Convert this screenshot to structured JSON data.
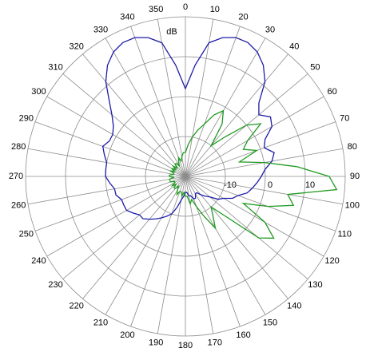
{
  "chart_data": {
    "type": "polar",
    "r_label": "dB",
    "theta_direction": "clockwise",
    "theta_zero": "top",
    "rlim": [
      -20,
      20
    ],
    "rticks": [
      -10,
      0,
      10
    ],
    "thetaticks": [
      0,
      10,
      20,
      30,
      40,
      50,
      60,
      70,
      80,
      90,
      100,
      110,
      120,
      130,
      140,
      150,
      160,
      170,
      180,
      190,
      200,
      210,
      220,
      230,
      240,
      250,
      260,
      270,
      280,
      290,
      300,
      310,
      320,
      330,
      340,
      350
    ],
    "theta": [
      0,
      5,
      10,
      15,
      20,
      25,
      30,
      35,
      40,
      45,
      50,
      55,
      60,
      65,
      70,
      75,
      80,
      85,
      90,
      95,
      100,
      105,
      110,
      115,
      120,
      125,
      130,
      135,
      140,
      145,
      150,
      155,
      160,
      165,
      170,
      175,
      180,
      185,
      190,
      195,
      200,
      205,
      210,
      215,
      220,
      225,
      230,
      235,
      240,
      245,
      250,
      255,
      260,
      265,
      270,
      275,
      280,
      285,
      290,
      295,
      300,
      305,
      310,
      315,
      320,
      325,
      330,
      335,
      340,
      345,
      350,
      355
    ],
    "series": [
      {
        "color": "#1c1ca8",
        "values": [
          2,
          8,
          14,
          16,
          17,
          17,
          16,
          14,
          11,
          6,
          4,
          6,
          5,
          2,
          1,
          3,
          2,
          0,
          -1,
          -2,
          -3,
          -4,
          -6,
          -7,
          -9,
          -10,
          -12,
          -13,
          -14,
          -15,
          -15,
          -14,
          -14,
          -15,
          -15,
          -16,
          -16,
          -15,
          -14,
          -12,
          -10,
          -9,
          -8,
          -7,
          -6,
          -5,
          -5,
          -4,
          -3,
          -3,
          -3,
          -2,
          -2,
          -1,
          0,
          0,
          0,
          1,
          2,
          1,
          1,
          2,
          4,
          7,
          11,
          14,
          16,
          17,
          17,
          16,
          14,
          8
        ]
      },
      {
        "color": "#1f9a1f",
        "values": [
          -14,
          -12,
          -10,
          -8,
          -6,
          -3,
          -1,
          -4,
          -10,
          -6,
          0,
          3,
          -2,
          -4,
          -1,
          -6,
          0,
          8,
          16,
          18,
          6,
          8,
          2,
          -4,
          3,
          7,
          4,
          -6,
          -10,
          -8,
          -5,
          -9,
          -12,
          -14,
          -13,
          -15,
          -15,
          -16,
          -15,
          -16,
          -16,
          -15,
          -16,
          -17,
          -16,
          -16,
          -17,
          -16,
          -17,
          -17,
          -16,
          -16,
          -16,
          -17,
          -16,
          -16,
          -17,
          -17,
          -16,
          -17,
          -16,
          -17,
          -16,
          -17,
          -16,
          -16,
          -17,
          -16,
          -15,
          -16,
          -15,
          -14
        ]
      }
    ]
  }
}
